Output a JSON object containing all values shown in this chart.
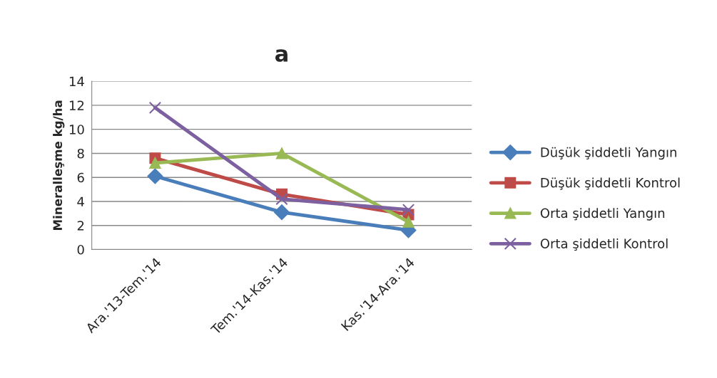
{
  "chart_data": {
    "type": "line",
    "title": "a",
    "ylabel": "Mineralleşme kg/ha",
    "categories": [
      "Ara.'13-Tem.'14",
      "Tem.'14-Kas.'14",
      "Kas.'14-Ara.'14"
    ],
    "series": [
      {
        "name": "Düşük şiddetli Yangın",
        "color": "#4a7ebb",
        "marker": "diamond",
        "values": [
          6.1,
          3.1,
          1.6
        ]
      },
      {
        "name": "Düşük şiddetli Kontrol",
        "color": "#be4b48",
        "marker": "square",
        "values": [
          7.6,
          4.6,
          2.9
        ]
      },
      {
        "name": "Orta şiddetli Yangın",
        "color": "#98b954",
        "marker": "triangle",
        "values": [
          7.2,
          8.0,
          2.3
        ]
      },
      {
        "name": "Orta şiddetli Kontrol",
        "color": "#7d60a0",
        "marker": "cross",
        "values": [
          11.8,
          4.2,
          3.3
        ]
      }
    ],
    "ylim": [
      0,
      14
    ],
    "yticks": [
      0,
      2,
      4,
      6,
      8,
      10,
      12,
      14
    ],
    "grid": "y",
    "legend": "right",
    "line_style": "solid"
  }
}
